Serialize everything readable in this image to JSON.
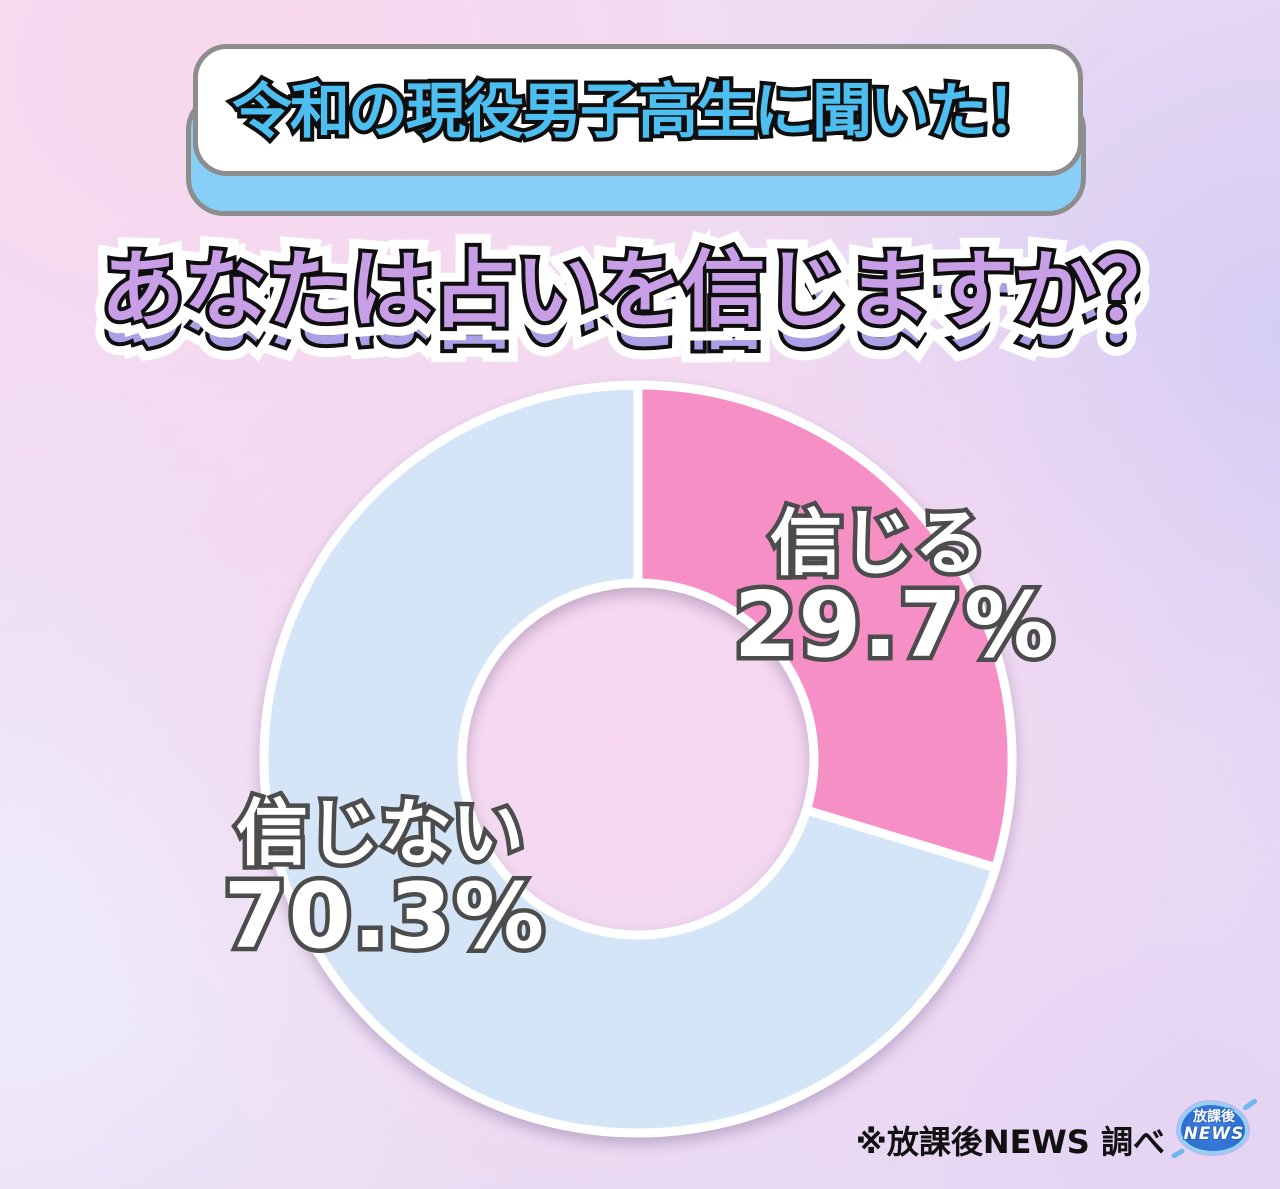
{
  "header": {
    "badge_text": "令和の現役男子高生に聞いた！"
  },
  "title": {
    "text": "あなたは占いを信じますか？"
  },
  "chart_data": {
    "type": "pie",
    "subtype": "donut",
    "title": "あなたは占いを信じますか？",
    "subtitle": "令和の現役男子高生に聞いた！",
    "unit": "%",
    "start_angle_deg": 0,
    "direction": "clockwise",
    "inner_radius_ratio": 0.47,
    "segments": [
      {
        "label": "信じる",
        "value": 29.7,
        "display": "29.7%",
        "color": "#f78fc7"
      },
      {
        "label": "信じない",
        "value": 70.3,
        "display": "70.3%",
        "color": "#d4e5f8"
      }
    ],
    "legend_position": "on-chart",
    "source": "※放課後NEWS 調べ"
  },
  "footer": {
    "credit": "※放課後NEWS 調べ",
    "logo": {
      "top": "放課後",
      "bottom": "NEWS"
    }
  },
  "colors": {
    "slice_believe": "#f78fc7",
    "slice_not_believe": "#d4e5f8",
    "slice_divider": "#ffffff",
    "header_text": "#4dbef0",
    "header_shadow_layer": "#87cff6",
    "badge_outline": "#8d8d8d",
    "title_fill": "#c89ee6",
    "title_shadow_layer": "#a9a0e6",
    "label_fill": "#ffffff",
    "label_outline": "#4c4c4c",
    "credit_text": "#111111"
  }
}
